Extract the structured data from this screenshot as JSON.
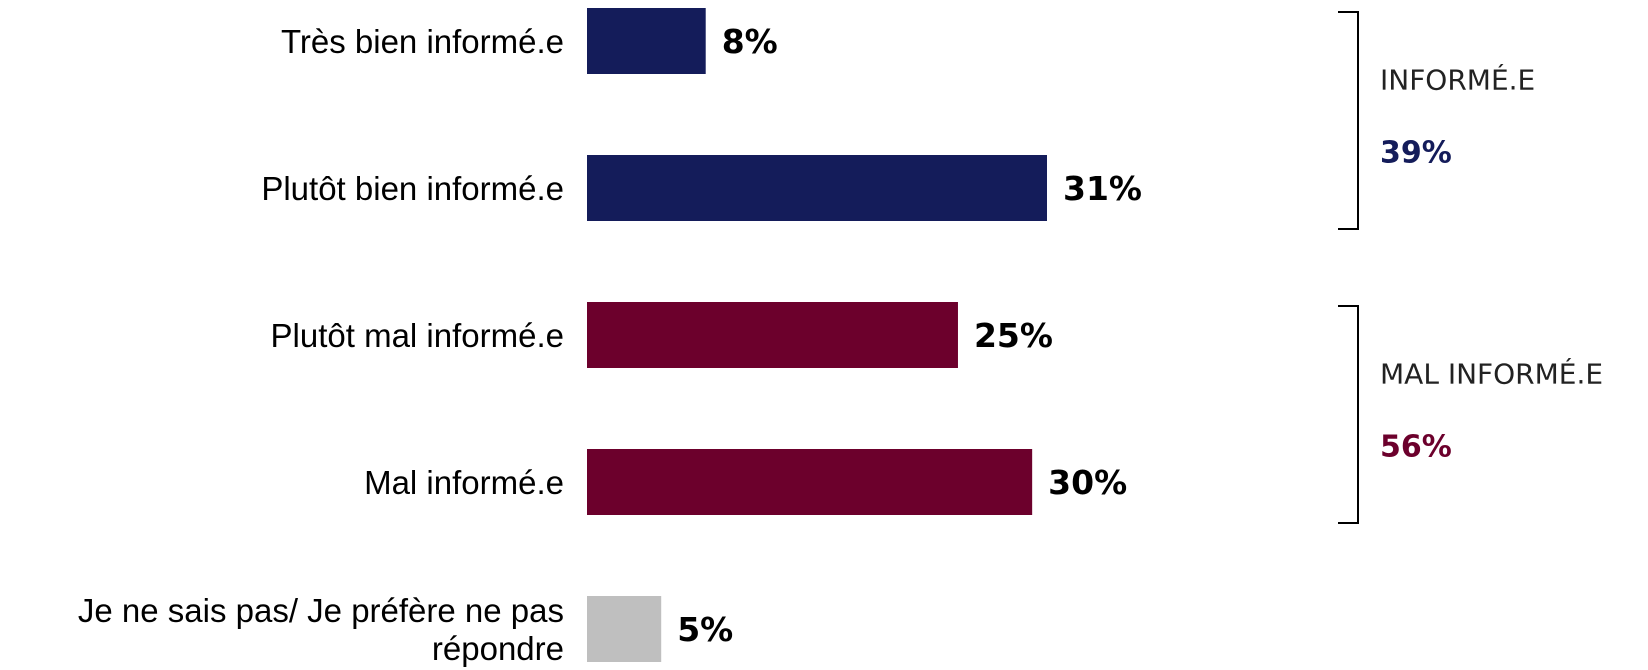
{
  "chart_data": {
    "type": "bar",
    "orientation": "horizontal",
    "categories": [
      [
        "Très bien informé.e"
      ],
      [
        "Plutôt bien informé.e"
      ],
      [
        "Plutôt mal informé.e"
      ],
      [
        "Mal informé.e"
      ],
      [
        "Je ne sais pas/ Je préfère ne pas",
        "répondre"
      ]
    ],
    "values": [
      8,
      31,
      25,
      30,
      5
    ],
    "value_labels": [
      "8%",
      "31%",
      "25%",
      "30%",
      "5%"
    ],
    "bar_colors": [
      "#141c5a",
      "#141c5a",
      "#6c002c",
      "#6c002c",
      "#bfbfbf"
    ],
    "xlim": [
      0,
      31
    ],
    "grid": false,
    "groups": [
      {
        "label": "INFORMÉ.E",
        "value": "39%",
        "color": "#141c5a",
        "members": [
          0,
          1
        ]
      },
      {
        "label": "MAL INFORMÉ.E",
        "value": "56%",
        "color": "#6c002c",
        "members": [
          2,
          3
        ]
      }
    ]
  }
}
